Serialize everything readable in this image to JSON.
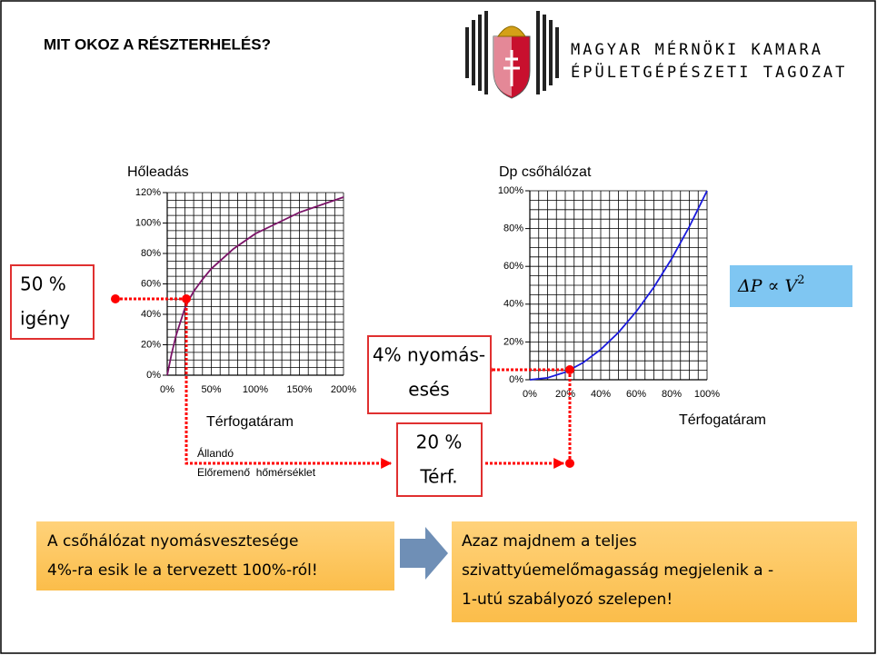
{
  "title": "MIT OKOZ A RÉSZTERHELÉS?",
  "logo": {
    "line1": "MAGYAR MÉRNÖKI KAMARA",
    "line2": "ÉPÜLETGÉPÉSZETI TAGOZAT"
  },
  "chart_data": [
    {
      "type": "line",
      "title": "Hőleadás",
      "x_label": "Térfogatáram",
      "color": "#7b1468",
      "x": [
        0,
        5,
        10,
        20,
        25,
        30,
        40,
        50,
        75,
        100,
        125,
        150,
        175,
        200
      ],
      "values": [
        0,
        14,
        26,
        44,
        50,
        55,
        63,
        70,
        83,
        93,
        100,
        107,
        112,
        117
      ],
      "xlim": [
        0,
        200
      ],
      "ylim": [
        0,
        120
      ],
      "xticks": [
        {
          "value": 0,
          "label": "0%"
        },
        {
          "value": 50,
          "label": "50%"
        },
        {
          "value": 100,
          "label": "100%"
        },
        {
          "value": 150,
          "label": "150%"
        },
        {
          "value": 200,
          "label": "200%"
        }
      ],
      "yticks": [
        {
          "value": 0,
          "label": "0%"
        },
        {
          "value": 20,
          "label": "20%"
        },
        {
          "value": 40,
          "label": "40%"
        },
        {
          "value": 60,
          "label": "60%"
        },
        {
          "value": 80,
          "label": "80%"
        },
        {
          "value": 100,
          "label": "100%"
        },
        {
          "value": 120,
          "label": "120%"
        }
      ],
      "grid": true,
      "grid_subdivisions": [
        5,
        4
      ]
    },
    {
      "type": "line",
      "title": "Dp csőhálózat",
      "x_label": "Térfogatáram",
      "color": "#1a1adc",
      "x": [
        0,
        10,
        20,
        30,
        40,
        50,
        60,
        70,
        80,
        90,
        100
      ],
      "values": [
        0,
        1,
        4,
        9,
        16,
        25,
        36,
        49,
        64,
        81,
        100
      ],
      "xlim": [
        0,
        100
      ],
      "ylim": [
        0,
        100
      ],
      "xticks": [
        {
          "value": 0,
          "label": "0%"
        },
        {
          "value": 20,
          "label": "20%"
        },
        {
          "value": 40,
          "label": "40%"
        },
        {
          "value": 60,
          "label": "60%"
        },
        {
          "value": 80,
          "label": "80%"
        },
        {
          "value": 100,
          "label": "100%"
        }
      ],
      "yticks": [
        {
          "value": 0,
          "label": "0%"
        },
        {
          "value": 20,
          "label": "20%"
        },
        {
          "value": 40,
          "label": "40%"
        },
        {
          "value": 60,
          "label": "60%"
        },
        {
          "value": 80,
          "label": "80%"
        },
        {
          "value": 100,
          "label": "100%"
        }
      ],
      "grid": true,
      "grid_subdivisions": [
        4,
        4
      ]
    }
  ],
  "annotations": {
    "demand": [
      "50 %",
      "igény"
    ],
    "pressure_drop": [
      "4% nyomás-",
      "esés"
    ],
    "flow": [
      "20 %",
      "Térf."
    ],
    "constant": [
      "Állandó",
      "Előremenő  hőmérséklet"
    ]
  },
  "formula": {
    "lhs": "ΔP",
    "op": "∝",
    "rhs": "V",
    "exp": "2"
  },
  "callouts": [
    [
      "A csőhálózat nyomásvesztesége",
      "4%-ra esik le a tervezett 100%-ról!"
    ],
    [
      "Azaz majdnem a teljes",
      "szivattyúemelőmagasság megjelenik a -",
      "1-utú szabályozó szelepen!"
    ]
  ]
}
